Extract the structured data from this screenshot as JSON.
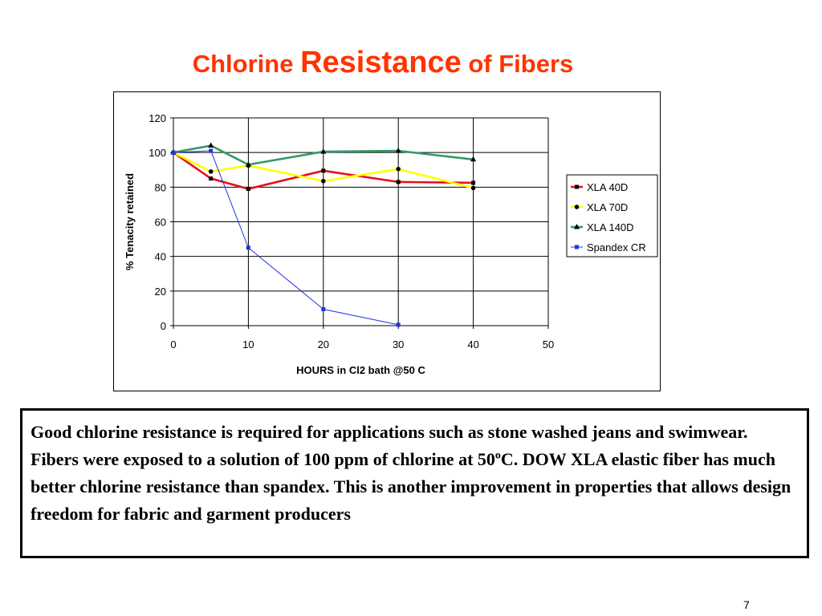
{
  "slide": {
    "title_part1": "Chlorine ",
    "title_part2": "Resistance",
    "title_part3": " of Fibers",
    "body_before_sup": "Good chlorine resistance is required for applications such as stone washed jeans and swimwear.  Fibers were exposed to a solution of 100 ppm of chlorine at 50",
    "body_sup": "o",
    "body_after_sup": "C. DOW XLA elastic fiber has much better chlorine resistance than spandex.  This is another improvement in properties that allows design freedom for fabric and garment producers",
    "page_number": "7"
  },
  "chart_data": {
    "type": "line",
    "title": "",
    "xlabel": "HOURS in Cl2 bath @50 C",
    "ylabel": "% Tenacity retained",
    "xlim": [
      0,
      50
    ],
    "ylim": [
      0,
      120
    ],
    "xticks": [
      0,
      10,
      20,
      30,
      40,
      50
    ],
    "yticks": [
      0,
      20,
      40,
      60,
      80,
      100,
      120
    ],
    "grid": true,
    "legend_position": "right",
    "series": [
      {
        "name": "XLA 40D",
        "color": "#e8101a",
        "marker": "square",
        "points": [
          [
            0,
            100
          ],
          [
            5,
            85
          ],
          [
            10,
            79
          ],
          [
            20,
            89.5
          ],
          [
            30,
            83
          ],
          [
            40,
            82.5
          ]
        ]
      },
      {
        "name": "XLA 70D",
        "color": "#ffff00",
        "marker": "circle",
        "points": [
          [
            0,
            100
          ],
          [
            5,
            89
          ],
          [
            10,
            92.5
          ],
          [
            20,
            83.5
          ],
          [
            30,
            90.5
          ],
          [
            40,
            79.5
          ]
        ]
      },
      {
        "name": "XLA 140D",
        "color": "#339966",
        "marker": "triangle",
        "points": [
          [
            0,
            100
          ],
          [
            5,
            104
          ],
          [
            10,
            93
          ],
          [
            20,
            100.5
          ],
          [
            30,
            101
          ],
          [
            40,
            96
          ]
        ]
      },
      {
        "name": "Spandex CR",
        "color": "#1f33e0",
        "marker": "square-small",
        "points": [
          [
            0,
            100
          ],
          [
            5,
            101
          ],
          [
            10,
            45
          ],
          [
            20,
            9.5
          ],
          [
            30,
            0.5
          ]
        ]
      }
    ]
  }
}
